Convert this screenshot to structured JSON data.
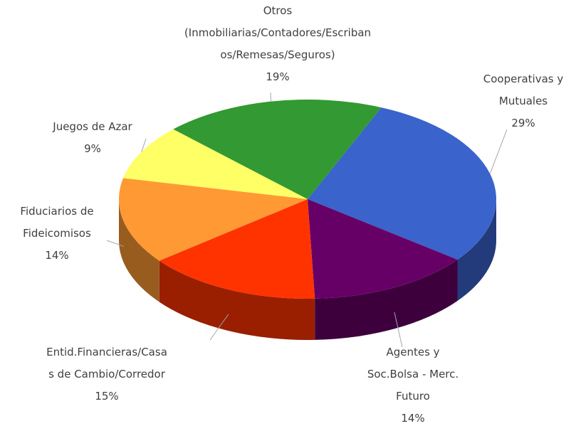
{
  "chart_data": {
    "type": "pie",
    "categories": [
      "Cooperativas y Mutuales",
      "Agentes y Soc.Bolsa - Merc. Futuro",
      "Entid.Financieras/Casas de Cambio/Corredor",
      "Fiduciarios de Fideicomisos",
      "Juegos de Azar",
      "Otros (Inmobiliarias/Contadores/Escribanos/Remesas/Seguros)"
    ],
    "values": [
      29,
      14,
      15,
      14,
      9,
      19
    ],
    "value_labels": [
      "29%",
      "14%",
      "15%",
      "14%",
      "9%",
      "19%"
    ],
    "colors": [
      "#3a63cc",
      "#660066",
      "#ff3300",
      "#ff9933",
      "#ffff66",
      "#339933"
    ]
  }
}
